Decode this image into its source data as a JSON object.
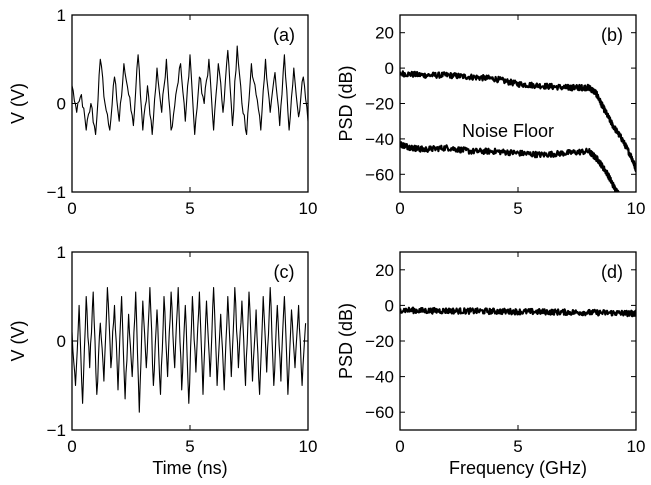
{
  "chart_data": [
    {
      "panel": "(a)",
      "type": "line",
      "title": "",
      "xlabel": "",
      "ylabel": "V (V)",
      "xlim": [
        0,
        10
      ],
      "ylim": [
        -1,
        1
      ],
      "xticks": [
        0,
        5,
        10
      ],
      "yticks": [
        -1,
        0,
        1
      ],
      "series": [
        {
          "x": [
            0.0,
            0.2,
            0.4,
            0.6,
            0.8,
            1.0,
            1.2,
            1.4,
            1.6,
            1.8,
            2.0,
            2.2,
            2.4,
            2.6,
            2.8,
            3.0,
            3.2,
            3.4,
            3.6,
            3.8,
            4.0,
            4.2,
            4.4,
            4.6,
            4.8,
            5.0,
            5.2,
            5.4,
            5.6,
            5.8,
            6.0,
            6.2,
            6.4,
            6.6,
            6.8,
            7.0,
            7.2,
            7.4,
            7.6,
            7.8,
            8.0,
            8.2,
            8.4,
            8.6,
            8.8,
            9.0,
            9.2,
            9.4,
            9.6,
            9.8,
            10.0
          ],
          "y": [
            0.2,
            -0.1,
            0.1,
            -0.3,
            0.0,
            -0.35,
            0.5,
            0.0,
            -0.3,
            0.3,
            -0.2,
            0.45,
            0.1,
            -0.25,
            0.55,
            -0.3,
            0.2,
            -0.35,
            0.4,
            -0.1,
            0.5,
            -0.3,
            0.1,
            0.45,
            -0.2,
            0.55,
            -0.35,
            0.3,
            0.0,
            0.5,
            -0.3,
            0.45,
            -0.1,
            0.6,
            -0.25,
            0.65,
            0.0,
            -0.35,
            0.45,
            0.1,
            -0.3,
            0.5,
            -0.1,
            0.35,
            -0.25,
            0.55,
            -0.3,
            0.4,
            -0.15,
            0.3,
            -0.2
          ]
        }
      ]
    },
    {
      "panel": "(b)",
      "type": "line",
      "title": "",
      "xlabel": "",
      "ylabel": "PSD (dB)",
      "xlim": [
        0,
        10
      ],
      "ylim": [
        -70,
        30
      ],
      "xticks": [
        0,
        5,
        10
      ],
      "yticks": [
        -60,
        -40,
        -20,
        0,
        20
      ],
      "annotations": [
        "Noise Floor"
      ],
      "series": [
        {
          "x": [
            0,
            1,
            2,
            3,
            4,
            5,
            6,
            7,
            7.5,
            8,
            8.3,
            8.6,
            9,
            9.4,
            9.8,
            10
          ],
          "y": [
            -3,
            -4,
            -4,
            -5,
            -6,
            -9,
            -10,
            -11,
            -11,
            -11,
            -14,
            -22,
            -32,
            -40,
            -50,
            -57
          ]
        },
        {
          "x": [
            0,
            0.5,
            1,
            2,
            3,
            4,
            5,
            6,
            7,
            8,
            8.4,
            8.8,
            9.1,
            9.3
          ],
          "y": [
            -43,
            -45,
            -46,
            -45,
            -47,
            -47,
            -48,
            -49,
            -48,
            -47,
            -52,
            -60,
            -68,
            -72
          ]
        }
      ]
    },
    {
      "panel": "(c)",
      "type": "line",
      "title": "",
      "xlabel": "Time (ns)",
      "ylabel": "V (V)",
      "xlim": [
        0,
        10
      ],
      "ylim": [
        -1,
        1
      ],
      "xticks": [
        0,
        5,
        10
      ],
      "yticks": [
        -1,
        0,
        1
      ],
      "series": [
        {
          "x": [
            0.0,
            0.15,
            0.3,
            0.45,
            0.6,
            0.75,
            0.9,
            1.05,
            1.2,
            1.35,
            1.5,
            1.65,
            1.8,
            1.95,
            2.1,
            2.25,
            2.4,
            2.55,
            2.7,
            2.85,
            3.0,
            3.15,
            3.3,
            3.45,
            3.6,
            3.75,
            3.9,
            4.05,
            4.2,
            4.35,
            4.5,
            4.65,
            4.8,
            4.95,
            5.1,
            5.25,
            5.4,
            5.55,
            5.7,
            5.85,
            6.0,
            6.15,
            6.3,
            6.45,
            6.6,
            6.75,
            6.9,
            7.05,
            7.2,
            7.35,
            7.5,
            7.65,
            7.8,
            7.95,
            8.1,
            8.25,
            8.4,
            8.55,
            8.7,
            8.85,
            9.0,
            9.15,
            9.3,
            9.45,
            9.6,
            9.75,
            9.9
          ],
          "y": [
            0.1,
            -0.5,
            0.4,
            -0.7,
            0.5,
            -0.3,
            0.55,
            -0.6,
            0.2,
            -0.45,
            0.6,
            -0.3,
            0.4,
            -0.55,
            0.5,
            -0.65,
            0.3,
            -0.4,
            0.55,
            -0.8,
            0.45,
            -0.3,
            0.6,
            -0.5,
            0.35,
            -0.6,
            0.5,
            -0.4,
            0.55,
            -0.3,
            0.6,
            -0.55,
            0.4,
            -0.7,
            0.5,
            -0.35,
            0.55,
            -0.6,
            0.45,
            -0.4,
            0.6,
            -0.5,
            0.3,
            -0.55,
            0.5,
            -0.4,
            0.6,
            -0.3,
            0.45,
            -0.5,
            0.55,
            -0.45,
            0.35,
            -0.6,
            0.5,
            -0.35,
            0.6,
            -0.5,
            0.4,
            -0.45,
            0.5,
            -0.6,
            0.35,
            -0.3,
            0.4,
            -0.5,
            0.2
          ]
        }
      ]
    },
    {
      "panel": "(d)",
      "type": "line",
      "title": "",
      "xlabel": "Frequency (GHz)",
      "ylabel": "PSD (dB)",
      "xlim": [
        0,
        10
      ],
      "ylim": [
        -70,
        30
      ],
      "xticks": [
        0,
        5,
        10
      ],
      "yticks": [
        -60,
        -40,
        -20,
        0,
        20
      ],
      "series": [
        {
          "x": [
            0,
            1,
            2,
            3,
            4,
            5,
            6,
            7,
            8,
            9,
            9.8,
            10
          ],
          "y": [
            -2.5,
            -3,
            -3,
            -3.2,
            -3.3,
            -3.5,
            -3.6,
            -3.8,
            -4,
            -4.2,
            -4.5,
            -4.5
          ]
        }
      ]
    }
  ]
}
